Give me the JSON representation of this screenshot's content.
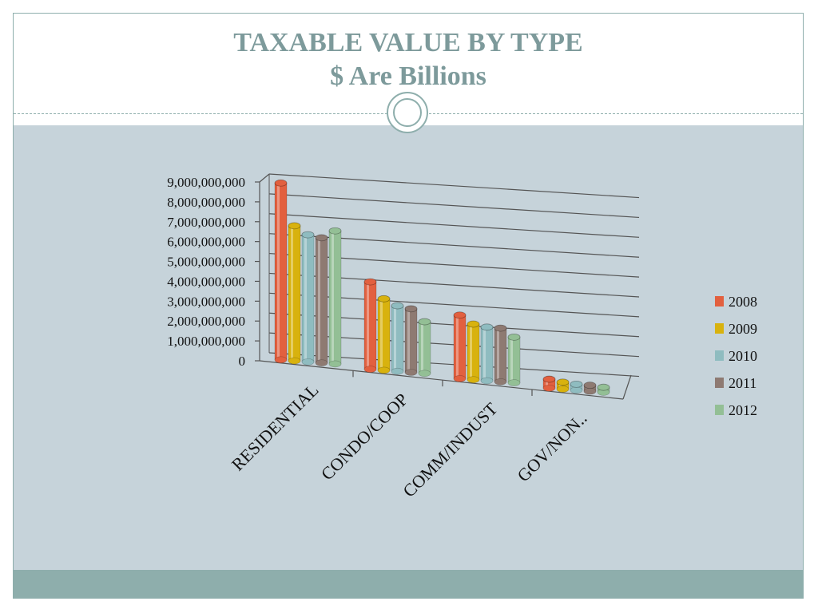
{
  "slide": {
    "title_line1": "TAXABLE VALUE BY TYPE",
    "title_line2": "$ Are Billions"
  },
  "colors": {
    "title": "#7d9a9b",
    "background": "#c6d3da",
    "accent": "#8eaeac"
  },
  "chart_data": {
    "type": "bar",
    "three_d": true,
    "title": "",
    "xlabel": "",
    "ylabel": "",
    "ylim": [
      0,
      9000000000
    ],
    "yticks": [
      "0",
      "1,000,000,000",
      "2,000,000,000",
      "3,000,000,000",
      "4,000,000,000",
      "5,000,000,000",
      "6,000,000,000",
      "7,000,000,000",
      "8,000,000,000",
      "9,000,000,000"
    ],
    "categories": [
      "RESIDENTIAL",
      "CONDO/COOP",
      "COMM/INDUST",
      "GOV/NON.."
    ],
    "grid": true,
    "legend_position": "right",
    "series": [
      {
        "name": "2008",
        "color": "#e2603f",
        "values": [
          8900000000,
          4400000000,
          3200000000,
          450000000
        ]
      },
      {
        "name": "2009",
        "color": "#d8b20e",
        "values": [
          6800000000,
          3600000000,
          2800000000,
          350000000
        ]
      },
      {
        "name": "2010",
        "color": "#8fbcc0",
        "values": [
          6400000000,
          3300000000,
          2700000000,
          300000000
        ]
      },
      {
        "name": "2011",
        "color": "#8e7a72",
        "values": [
          6300000000,
          3200000000,
          2700000000,
          300000000
        ]
      },
      {
        "name": "2012",
        "color": "#93bf95",
        "values": [
          6700000000,
          2600000000,
          2300000000,
          250000000
        ]
      }
    ]
  }
}
